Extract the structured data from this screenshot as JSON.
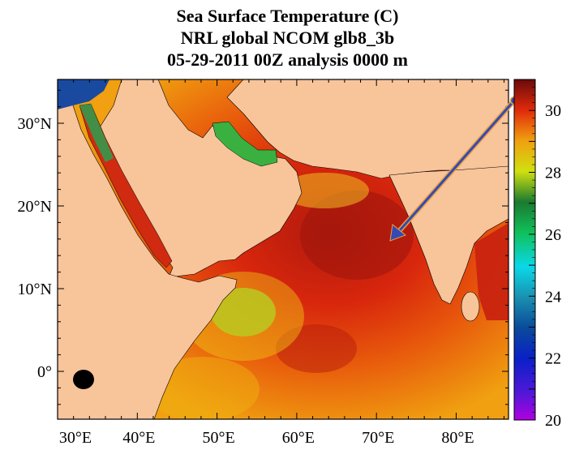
{
  "titles": {
    "line1": "Sea Surface Temperature (C)",
    "line2": "NRL global NCOM glb8_3b",
    "line3": "05-29-2011 00Z analysis   0000 m"
  },
  "map": {
    "lon_labels": [
      "30°E",
      "40°E",
      "50°E",
      "60°E",
      "70°E",
      "80°E"
    ],
    "lat_labels": [
      "30°N",
      "20°N",
      "10°N",
      "0°"
    ],
    "land_color": "#f8c49a",
    "arrow_color": "#3549b5"
  },
  "colorbar": {
    "min": 20,
    "max": 31,
    "labels": [
      "30",
      "28",
      "26",
      "24",
      "22",
      "20"
    ]
  }
}
